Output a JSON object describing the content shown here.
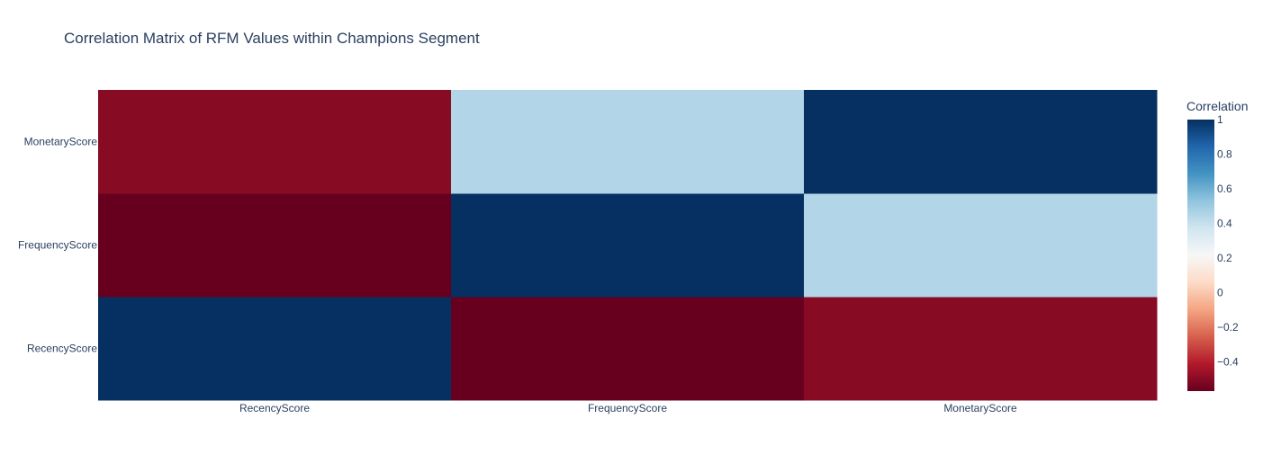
{
  "chart_data": {
    "type": "heatmap",
    "title": "Correlation Matrix of RFM Values within Champions Segment",
    "x_categories": [
      "RecencyScore",
      "FrequencyScore",
      "MonetaryScore"
    ],
    "y_categories": [
      "RecencyScore",
      "FrequencyScore",
      "MonetaryScore"
    ],
    "z": [
      [
        1.0,
        -0.57,
        -0.5
      ],
      [
        -0.57,
        1.0,
        0.45
      ],
      [
        -0.5,
        0.45,
        1.0
      ]
    ],
    "colorbar": {
      "title": "Correlation",
      "range": [
        -0.57,
        1.0
      ],
      "ticks": [
        1,
        0.8,
        0.6,
        0.4,
        0.2,
        0,
        -0.2,
        -0.4
      ],
      "tick_labels": [
        "1",
        "0.8",
        "0.6",
        "0.4",
        "0.2",
        "0",
        "−0.2",
        "−0.4"
      ]
    },
    "colorscale": [
      [
        0.0,
        "#67001f"
      ],
      [
        0.1,
        "#b2182b"
      ],
      [
        0.2,
        "#d6604d"
      ],
      [
        0.3,
        "#f4a582"
      ],
      [
        0.4,
        "#fddbc7"
      ],
      [
        0.5,
        "#f7f7f7"
      ],
      [
        0.6,
        "#d1e5f0"
      ],
      [
        0.7,
        "#92c5de"
      ],
      [
        0.8,
        "#4393c3"
      ],
      [
        0.9,
        "#2166ac"
      ],
      [
        1.0,
        "#053061"
      ]
    ]
  }
}
